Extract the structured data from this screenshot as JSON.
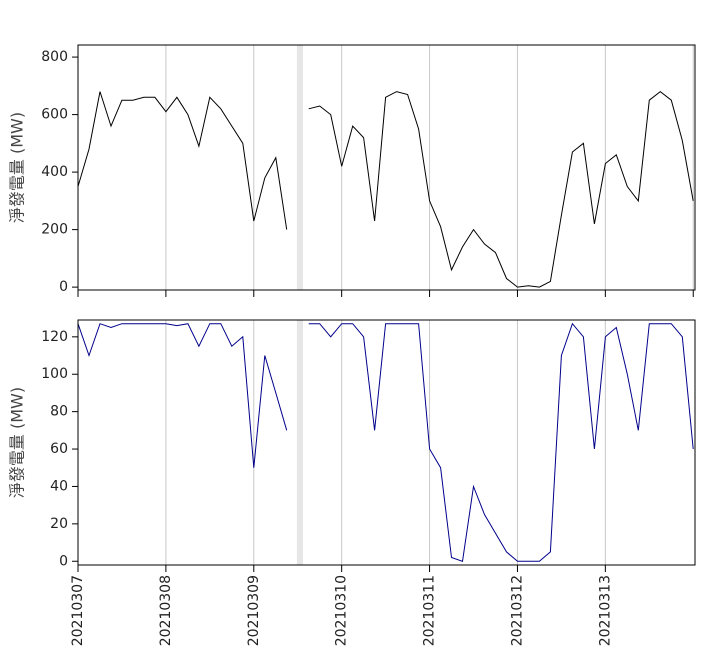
{
  "chart_data": [
    {
      "type": "line",
      "y_label": "淨發電量 (MW)",
      "x": [
        0,
        0.125,
        0.25,
        0.375,
        0.5,
        0.625,
        0.75,
        0.875,
        1,
        1.125,
        1.25,
        1.375,
        1.5,
        1.625,
        1.75,
        1.875,
        2,
        2.125,
        2.25,
        2.375,
        2.5,
        2.625,
        2.75,
        2.875,
        3,
        3.125,
        3.25,
        3.375,
        3.5,
        3.625,
        3.75,
        3.875,
        4,
        4.125,
        4.25,
        4.375,
        4.5,
        4.625,
        4.75,
        4.875,
        5,
        5.125,
        5.25,
        5.375,
        5.5,
        5.625,
        5.75,
        5.875,
        6,
        6.125,
        6.25,
        6.375,
        6.5,
        6.625,
        6.75,
        6.875,
        7
      ],
      "series": [
        {
          "color": "#000000",
          "values": [
            350,
            480,
            680,
            560,
            650,
            650,
            660,
            660,
            610,
            660,
            600,
            490,
            660,
            620,
            560,
            500,
            230,
            380,
            450,
            200,
            null,
            620,
            630,
            600,
            420,
            560,
            520,
            230,
            660,
            680,
            670,
            550,
            300,
            210,
            60,
            140,
            200,
            150,
            120,
            30,
            0,
            5,
            0,
            20,
            250,
            470,
            500,
            220,
            430,
            460,
            350,
            300,
            650,
            680,
            650,
            510,
            300
          ]
        }
      ],
      "xlim": [
        0,
        7.02
      ],
      "xticks": [
        0,
        1,
        2,
        3,
        4,
        5,
        6,
        7
      ],
      "ylim": [
        -10,
        842
      ],
      "yticks": [
        0,
        200,
        400,
        600,
        800
      ],
      "grid": true,
      "shaded_span": [
        2.49,
        2.56
      ]
    },
    {
      "type": "line",
      "y_label": "淨發電量 (MW)",
      "x": [
        0,
        0.125,
        0.25,
        0.375,
        0.5,
        0.625,
        0.75,
        0.875,
        1,
        1.125,
        1.25,
        1.375,
        1.5,
        1.625,
        1.75,
        1.875,
        2,
        2.125,
        2.25,
        2.375,
        2.5,
        2.625,
        2.75,
        2.875,
        3,
        3.125,
        3.25,
        3.375,
        3.5,
        3.625,
        3.75,
        3.875,
        4,
        4.125,
        4.25,
        4.375,
        4.5,
        4.625,
        4.75,
        4.875,
        5,
        5.125,
        5.25,
        5.375,
        5.5,
        5.625,
        5.75,
        5.875,
        6,
        6.125,
        6.25,
        6.375,
        6.5,
        6.625,
        6.75,
        6.875,
        7
      ],
      "series": [
        {
          "color": "#00008b",
          "values": [
            127,
            110,
            127,
            125,
            127,
            127,
            127,
            127,
            127,
            126,
            127,
            115,
            127,
            127,
            115,
            120,
            50,
            110,
            90,
            70,
            null,
            127,
            127,
            120,
            127,
            127,
            120,
            70,
            127,
            127,
            127,
            127,
            60,
            50,
            2,
            0,
            40,
            25,
            15,
            5,
            0,
            0,
            0,
            5,
            110,
            127,
            120,
            60,
            120,
            125,
            100,
            70,
            127,
            127,
            127,
            120,
            60
          ]
        }
      ],
      "xlim": [
        0,
        7.02
      ],
      "xticks": [
        {
          "value": 0,
          "label": "20210307"
        },
        {
          "value": 1,
          "label": "20210308"
        },
        {
          "value": 2,
          "label": "20210309"
        },
        {
          "value": 3,
          "label": "20210310"
        },
        {
          "value": 4,
          "label": "20210311"
        },
        {
          "value": 5,
          "label": "20210312"
        },
        {
          "value": 6,
          "label": "20210313"
        }
      ],
      "ylim": [
        -2,
        129
      ],
      "yticks": [
        0,
        20,
        40,
        60,
        80,
        100,
        120
      ],
      "grid": true,
      "shaded_span": [
        2.49,
        2.56
      ]
    }
  ]
}
